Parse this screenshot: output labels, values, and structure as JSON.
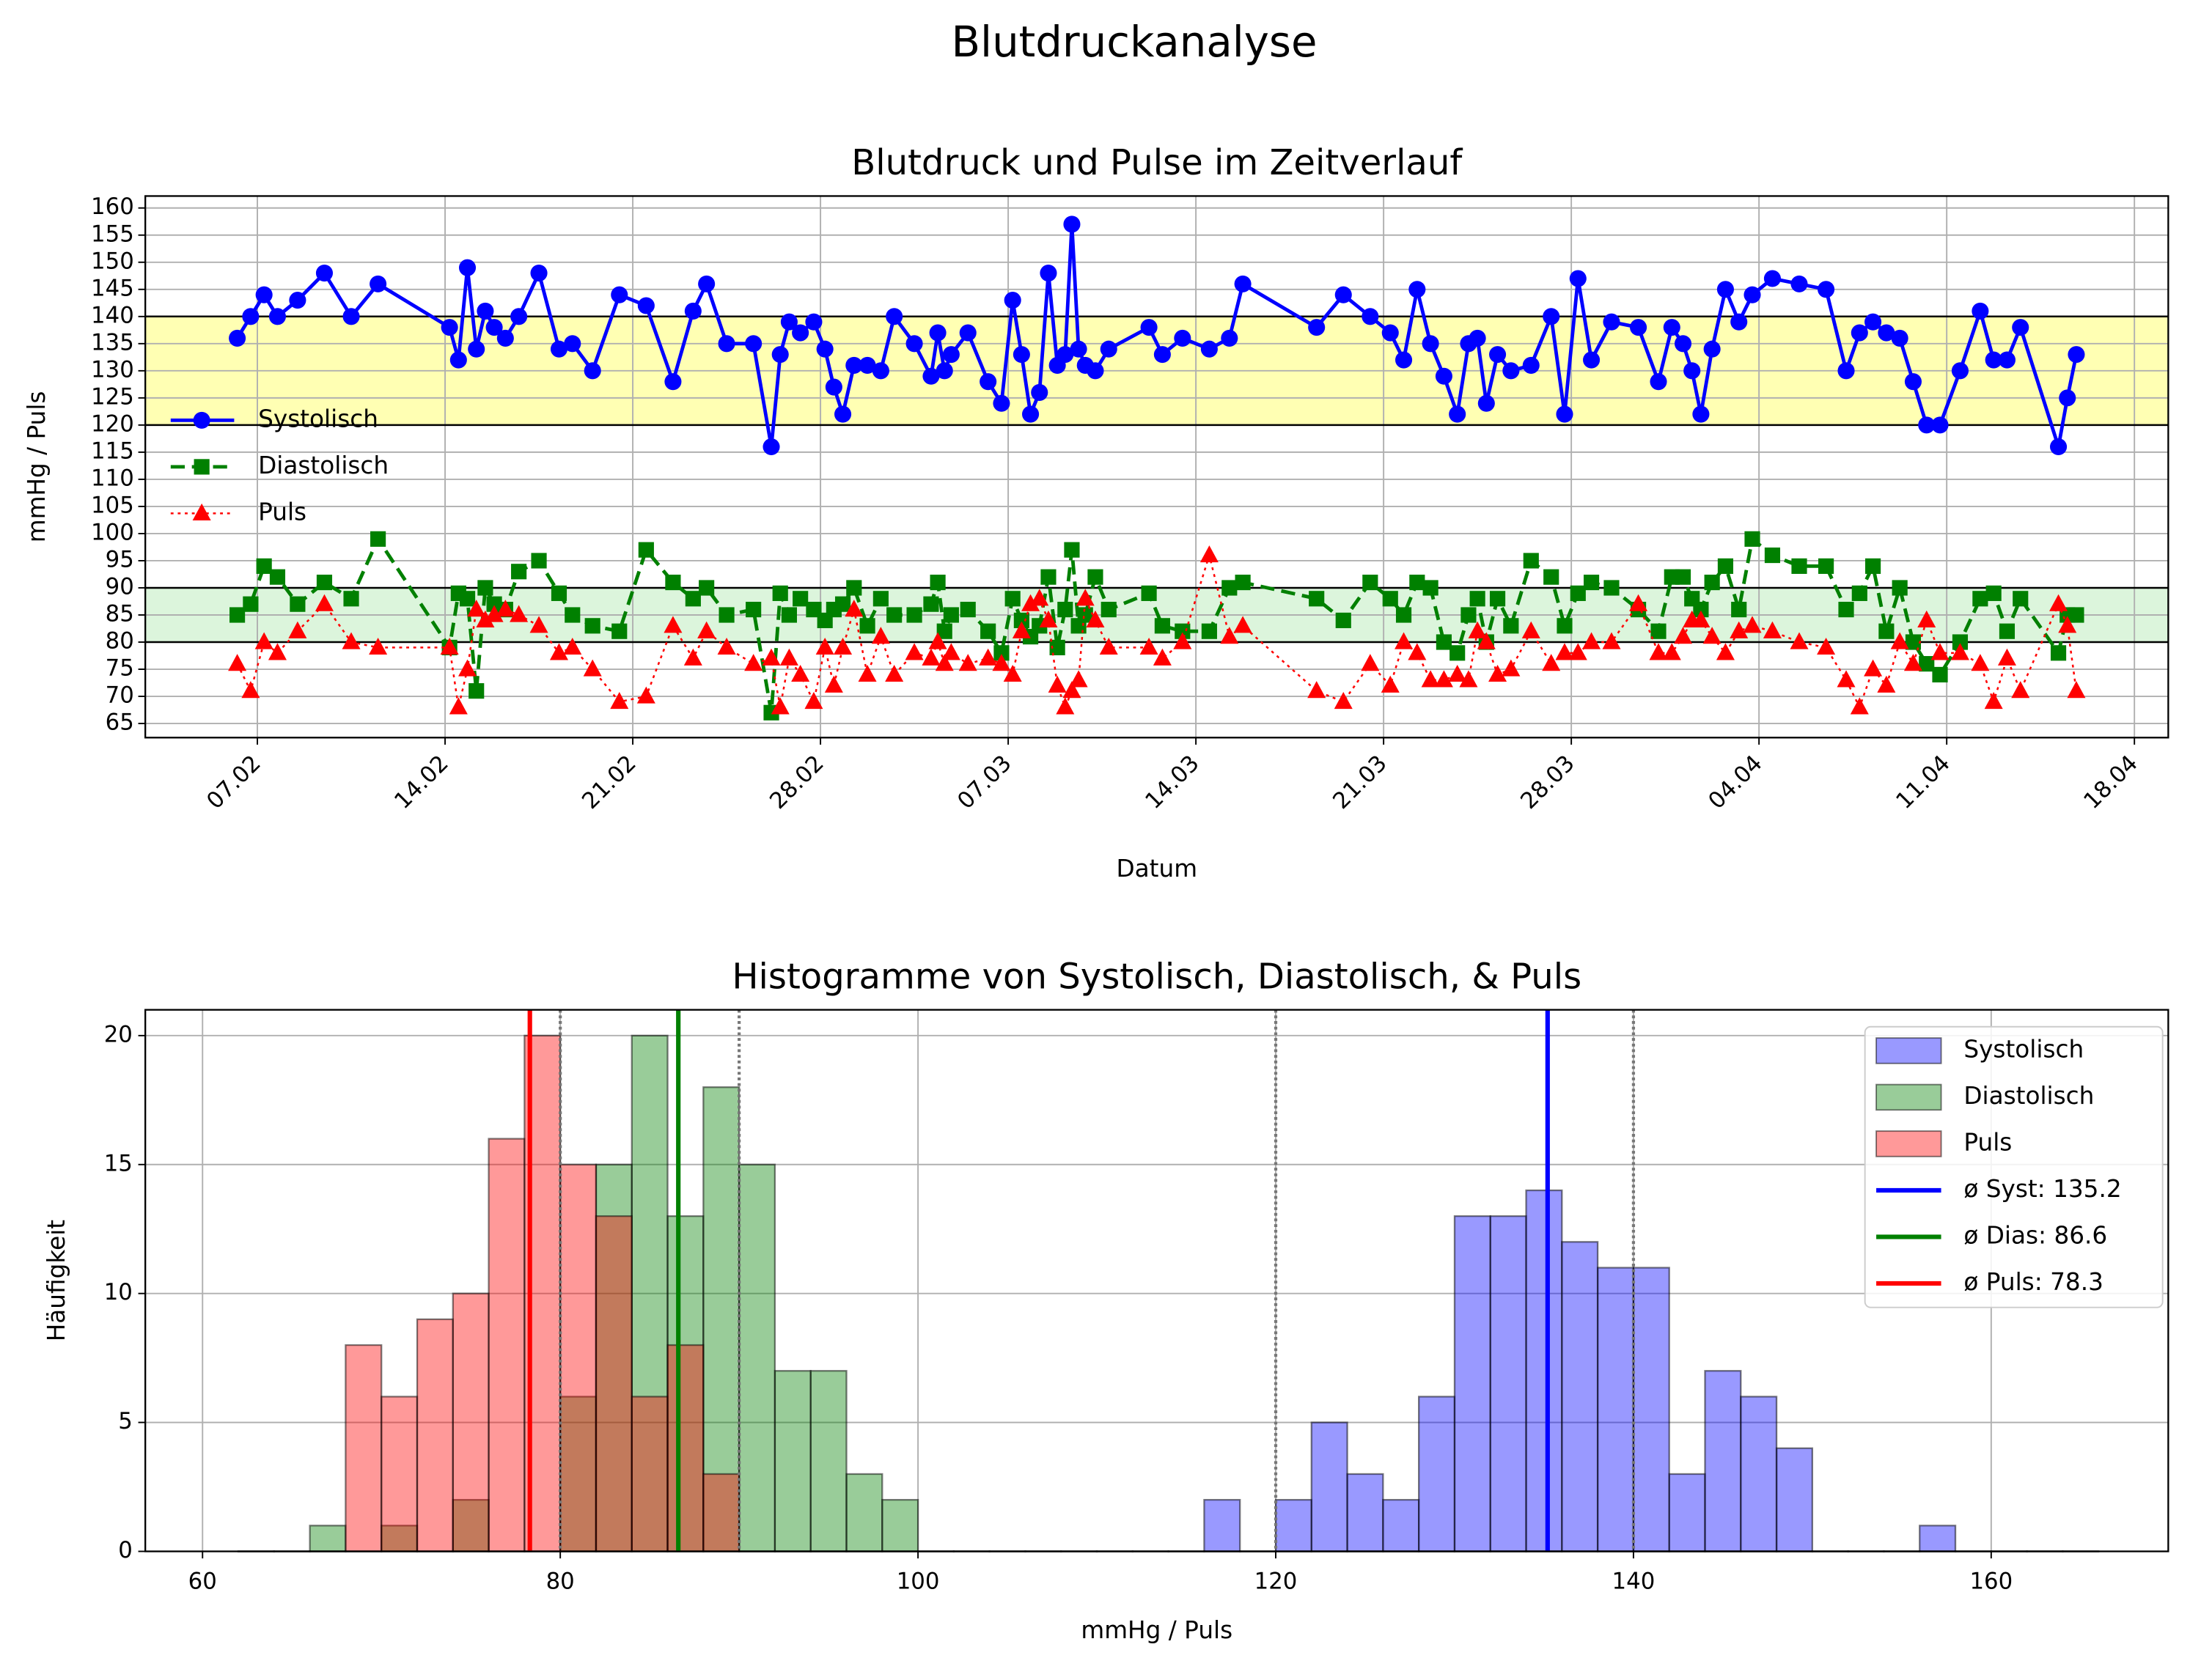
{
  "title": "Blutdruckanalyse",
  "chart_data": [
    {
      "type": "line",
      "title": "Blutdruck und Pulse im Zeitverlauf",
      "xlabel": "Datum",
      "ylabel": "mmHg / Puls",
      "x": [
        "06.02",
        "06.02",
        "07.02",
        "07.02",
        "08.02",
        "09.02",
        "10.02",
        "11.02",
        "14.02",
        "14.02",
        "14.02",
        "15.02",
        "15.02",
        "15.02",
        "16.02",
        "16.02",
        "17.02",
        "18.02",
        "18.02",
        "19.02",
        "20.02",
        "21.02",
        "22.02",
        "23.02",
        "23.02",
        "24.02",
        "25.02",
        "26.02",
        "26.02",
        "26.02",
        "27.02",
        "27.02",
        "28.02",
        "28.02",
        "28.02",
        "01.03",
        "01.03",
        "02.03",
        "02.03",
        "03.03",
        "04.03",
        "04.03",
        "04.03",
        "04.03",
        "05.03",
        "06.03",
        "06.03",
        "07.03",
        "07.03",
        "07.03",
        "08.03",
        "08.03",
        "08.03",
        "09.03",
        "09.03",
        "09.03",
        "09.03",
        "10.03",
        "10.03",
        "12.03",
        "12.03",
        "13.03",
        "14.03",
        "15.03",
        "15.03",
        "18.03",
        "19.03",
        "20.03",
        "21.03",
        "21.03",
        "22.03",
        "22.03",
        "23.03",
        "23.03",
        "24.03",
        "24.03",
        "24.03",
        "25.03",
        "25.03",
        "26.03",
        "27.03",
        "27.03",
        "28.03",
        "28.03",
        "29.03",
        "30.03",
        "31.03",
        "31.03",
        "01.04",
        "01.04",
        "01.04",
        "02.04",
        "02.04",
        "03.04",
        "03.04",
        "04.04",
        "05.04",
        "06.04",
        "07.04",
        "07.04",
        "08.04",
        "08.04",
        "09.04",
        "09.04",
        "10.04",
        "10.04",
        "11.04",
        "12.04",
        "12.04",
        "13.04",
        "13.04",
        "15.04",
        "15.04",
        "15.04"
      ],
      "series": [
        {
          "name": "Systolisch",
          "color": "blue",
          "marker": "o",
          "linestyle": "solid",
          "values": [
            136,
            140,
            144,
            140,
            143,
            148,
            140,
            146,
            138,
            132,
            149,
            134,
            141,
            138,
            136,
            140,
            148,
            134,
            135,
            130,
            144,
            142,
            128,
            141,
            146,
            135,
            135,
            116,
            133,
            139,
            137,
            139,
            134,
            127,
            122,
            131,
            131,
            130,
            140,
            135,
            129,
            137,
            130,
            133,
            137,
            128,
            124,
            143,
            133,
            122,
            126,
            148,
            131,
            133,
            157,
            134,
            131,
            130,
            134,
            138,
            133,
            136,
            134,
            136,
            146,
            138,
            144,
            140,
            137,
            132,
            145,
            135,
            129,
            122,
            135,
            136,
            124,
            133,
            130,
            131,
            140,
            122,
            147,
            132,
            139,
            138,
            128,
            138,
            135,
            130,
            122,
            134,
            145,
            139,
            144,
            147,
            146,
            145,
            130,
            137,
            139,
            137,
            136,
            128,
            120,
            120,
            130,
            141,
            132,
            132,
            138,
            116,
            125,
            133
          ]
        },
        {
          "name": "Diastolisch",
          "color": "green",
          "marker": "s",
          "linestyle": "dashed",
          "values": [
            85,
            87,
            94,
            92,
            87,
            91,
            88,
            99,
            79,
            89,
            88,
            71,
            90,
            87,
            86,
            93,
            95,
            89,
            85,
            83,
            82,
            97,
            91,
            88,
            90,
            85,
            86,
            67,
            89,
            85,
            88,
            86,
            84,
            86,
            87,
            90,
            83,
            88,
            85,
            85,
            87,
            91,
            82,
            85,
            86,
            82,
            78,
            88,
            84,
            81,
            83,
            92,
            79,
            86,
            97,
            83,
            85,
            92,
            86,
            89,
            83,
            82,
            82,
            90,
            91,
            88,
            84,
            91,
            88,
            85,
            91,
            90,
            80,
            78,
            85,
            88,
            80,
            88,
            83,
            95,
            92,
            83,
            89,
            91,
            90,
            86,
            82,
            92,
            92,
            88,
            86,
            91,
            94,
            86,
            99,
            96,
            94,
            94,
            86,
            89,
            94,
            82,
            90,
            80,
            76,
            74,
            80,
            88,
            89,
            82,
            88,
            78,
            85,
            85
          ]
        },
        {
          "name": "Puls",
          "color": "red",
          "marker": "^",
          "linestyle": "dotted",
          "values": [
            76,
            71,
            80,
            78,
            82,
            87,
            80,
            79,
            79,
            68,
            75,
            86,
            84,
            85,
            86,
            85,
            83,
            78,
            79,
            75,
            69,
            70,
            83,
            77,
            82,
            79,
            76,
            77,
            68,
            77,
            74,
            69,
            79,
            72,
            79,
            86,
            74,
            81,
            74,
            78,
            77,
            80,
            76,
            78,
            76,
            77,
            76,
            74,
            82,
            87,
            88,
            84,
            72,
            68,
            71,
            73,
            88,
            84,
            79,
            79,
            77,
            80,
            96,
            81,
            83,
            71,
            69,
            76,
            72,
            80,
            78,
            73,
            73,
            74,
            73,
            82,
            80,
            74,
            75,
            82,
            76,
            78,
            78,
            80,
            80,
            87,
            78,
            78,
            81,
            84,
            84,
            81,
            78,
            82,
            83,
            82,
            80,
            79,
            73,
            68,
            75,
            72,
            80,
            76,
            84,
            78,
            78,
            76,
            69,
            77,
            71,
            87,
            83,
            71
          ]
        }
      ],
      "xticks": [
        "07.02",
        "14.02",
        "21.02",
        "28.02",
        "07.03",
        "14.03",
        "21.03",
        "28.03",
        "04.04",
        "11.04",
        "18.04"
      ],
      "ylim": [
        62.4,
        162.2
      ],
      "yticks": [
        65,
        70,
        75,
        80,
        85,
        90,
        95,
        100,
        105,
        110,
        115,
        120,
        125,
        130,
        135,
        140,
        145,
        150,
        155,
        160
      ],
      "bands": [
        {
          "from": 120,
          "to": 140,
          "color": "#ffffb3"
        },
        {
          "from": 80,
          "to": 90,
          "color": "#dcf5dc"
        }
      ],
      "grid": true,
      "legend": "center left"
    },
    {
      "type": "histogram",
      "title": "Histogramme von Systolisch, Diastolisch, & Puls",
      "xlabel": "mmHg / Puls",
      "ylabel": "Häufigkeit",
      "bins": [
        62,
        64,
        66,
        68,
        70,
        72,
        74,
        76,
        78,
        80,
        82,
        84,
        86,
        88,
        90,
        92,
        94,
        96,
        98,
        100,
        102,
        104,
        106,
        108,
        110,
        112,
        114,
        116,
        118,
        120,
        122,
        124,
        126,
        128,
        130,
        132,
        134,
        136,
        138,
        140,
        142,
        144,
        146,
        148,
        150,
        152,
        154,
        156,
        158,
        160,
        162,
        164,
        166
      ],
      "series": [
        {
          "name": "Systolisch",
          "color": "blue",
          "values": [
            0,
            0,
            0,
            0,
            0,
            0,
            0,
            0,
            0,
            0,
            0,
            0,
            0,
            0,
            0,
            0,
            0,
            0,
            0,
            0,
            0,
            0,
            0,
            0,
            0,
            0,
            0,
            2,
            0,
            2,
            5,
            3,
            2,
            6,
            13,
            13,
            14,
            12,
            11,
            11,
            3,
            7,
            6,
            4,
            0,
            0,
            0,
            1,
            0,
            0,
            0,
            0
          ]
        },
        {
          "name": "Diastolisch",
          "color": "green",
          "values": [
            0,
            0,
            1,
            0,
            1,
            0,
            2,
            0,
            0,
            6,
            15,
            20,
            13,
            18,
            15,
            7,
            7,
            3,
            2,
            0,
            0,
            0,
            0,
            0,
            0,
            0,
            0,
            0,
            0,
            0,
            0,
            0,
            0,
            0,
            0,
            0,
            0,
            0,
            0,
            0,
            0,
            0,
            0,
            0,
            0,
            0,
            0,
            0,
            0,
            0,
            0,
            0
          ]
        },
        {
          "name": "Puls",
          "color": "red",
          "values": [
            0,
            0,
            0,
            8,
            6,
            9,
            10,
            16,
            20,
            15,
            13,
            6,
            8,
            3,
            0,
            0,
            0,
            0,
            0,
            0,
            0,
            0,
            0,
            0,
            0,
            0,
            0,
            0,
            0,
            0,
            0,
            0,
            0,
            0,
            0,
            0,
            0,
            0,
            0,
            0,
            0,
            0,
            0,
            0,
            0,
            0,
            0,
            0,
            0,
            0,
            0,
            0
          ]
        }
      ],
      "alpha": 0.4,
      "xlim": [
        56.8,
        169.9
      ],
      "ylim": [
        0,
        21
      ],
      "xticks": [
        60,
        80,
        100,
        120,
        140,
        160
      ],
      "yticks": [
        0,
        5,
        10,
        15,
        20
      ],
      "reference_lines": [
        80,
        90,
        120,
        140
      ],
      "mean_lines": [
        {
          "name": "ø Syst: 135.2",
          "value": 135.2,
          "color": "blue"
        },
        {
          "name": "ø Dias: 86.6",
          "value": 86.6,
          "color": "green"
        },
        {
          "name": "ø Puls: 78.3",
          "value": 78.3,
          "color": "red"
        }
      ],
      "grid": true,
      "legend": "upper right"
    }
  ]
}
